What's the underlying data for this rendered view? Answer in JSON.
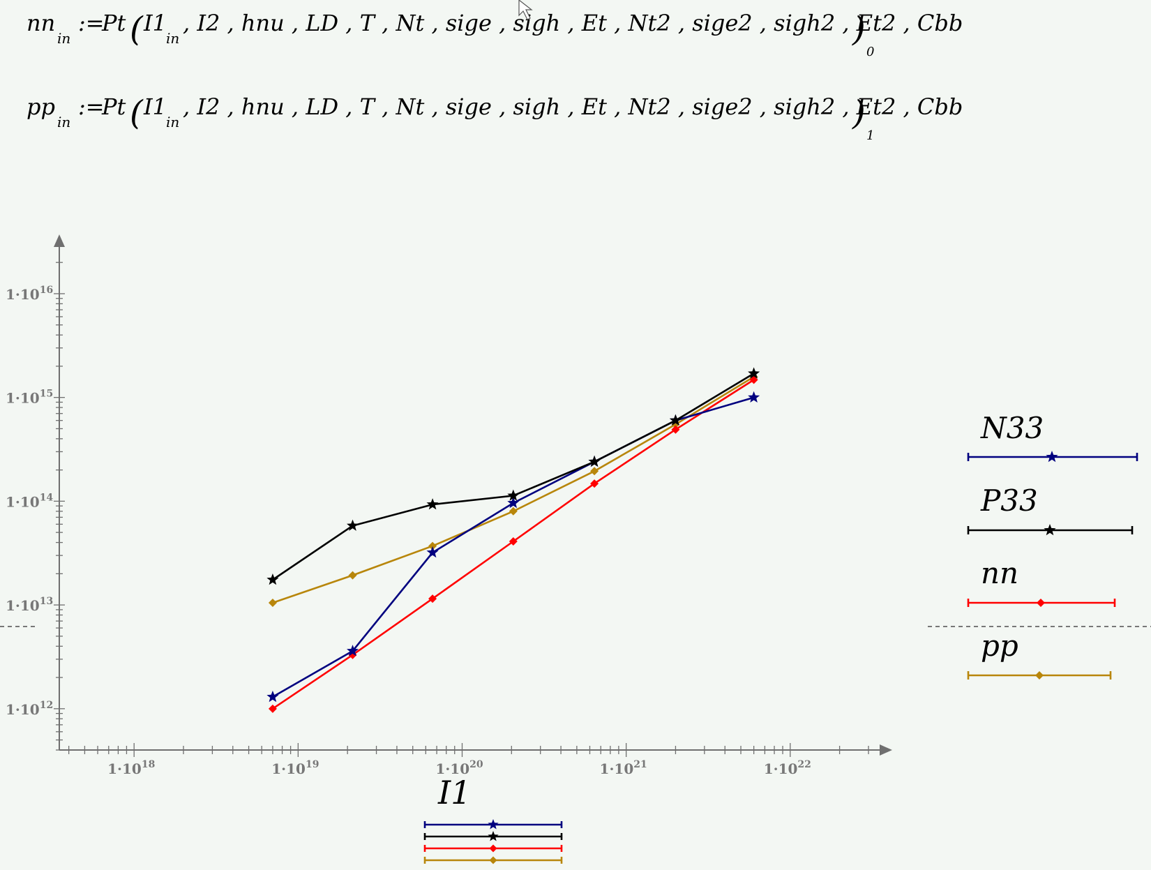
{
  "equations": [
    {
      "lhs": "nn",
      "lhs_sub": "in",
      "assign": ":=",
      "func": "Pt",
      "first_arg": "I1",
      "first_arg_sub": "in",
      "rest_args": "I2 , hnu , LD , T , Nt , sige , sigh , Et , Nt2 , sige2 , sigh2 , Et2 , Cbb",
      "result_index": "0"
    },
    {
      "lhs": "pp",
      "lhs_sub": "in",
      "assign": ":=",
      "func": "Pt",
      "first_arg": "I1",
      "first_arg_sub": "in",
      "rest_args": "I2 , hnu , LD , T , Nt , sige , sigh , Et , Nt2 , sige2 , sigh2 , Et2 , Cbb",
      "result_index": "1"
    }
  ],
  "colors": {
    "N33": "#00007f",
    "P33": "#000000",
    "nn": "#ff0000",
    "pp": "#b8860b",
    "axis": "#6f6f6f",
    "marker_line": "#777777"
  },
  "chart_data": {
    "type": "line",
    "xscale": "log",
    "yscale": "log",
    "xlim": [
      3.5e+17,
      3e+22
    ],
    "ylim": [
      400000000000.0,
      3e+16
    ],
    "xlabel": "I1",
    "ylabel": "",
    "x_ticks": [
      {
        "mant": "1",
        "exp": "18",
        "value": 1e+18
      },
      {
        "mant": "1",
        "exp": "19",
        "value": 1e+19
      },
      {
        "mant": "1",
        "exp": "20",
        "value": 1e+20
      },
      {
        "mant": "1",
        "exp": "21",
        "value": 1e+21
      },
      {
        "mant": "1",
        "exp": "22",
        "value": 1e+22
      }
    ],
    "y_ticks": [
      {
        "mant": "1",
        "exp": "12",
        "value": 1000000000000.0
      },
      {
        "mant": "1",
        "exp": "13",
        "value": 10000000000000.0
      },
      {
        "mant": "1",
        "exp": "14",
        "value": 100000000000000.0
      },
      {
        "mant": "1",
        "exp": "15",
        "value": 1000000000000000.0
      },
      {
        "mant": "1",
        "exp": "16",
        "value": 1e+16
      }
    ],
    "x": [
      7e+18,
      2.15e+19,
      6.6e+19,
      2.05e+20,
      6.4e+20,
      2e+21,
      6e+21
    ],
    "horizontal_marker_y": 6200000000000.0,
    "legend_position": "right",
    "series": [
      {
        "name": "N33",
        "marker": "star",
        "values": [
          1300000000000.0,
          3600000000000.0,
          32000000000000.0,
          96000000000000.0,
          240000000000000.0,
          600000000000000.0,
          1000000000000000.0
        ]
      },
      {
        "name": "P33",
        "marker": "star",
        "values": [
          17500000000000.0,
          58000000000000.0,
          93000000000000.0,
          113000000000000.0,
          240000000000000.0,
          600000000000000.0,
          1700000000000000.0
        ]
      },
      {
        "name": "nn",
        "marker": "diamond",
        "values": [
          1000000000000.0,
          3300000000000.0,
          11500000000000.0,
          41000000000000.0,
          148000000000000.0,
          490000000000000.0,
          1480000000000000.0
        ]
      },
      {
        "name": "pp",
        "marker": "diamond",
        "values": [
          10500000000000.0,
          19300000000000.0,
          37000000000000.0,
          80000000000000.0,
          195000000000000.0,
          550000000000000.0,
          1580000000000000.0
        ]
      }
    ]
  }
}
